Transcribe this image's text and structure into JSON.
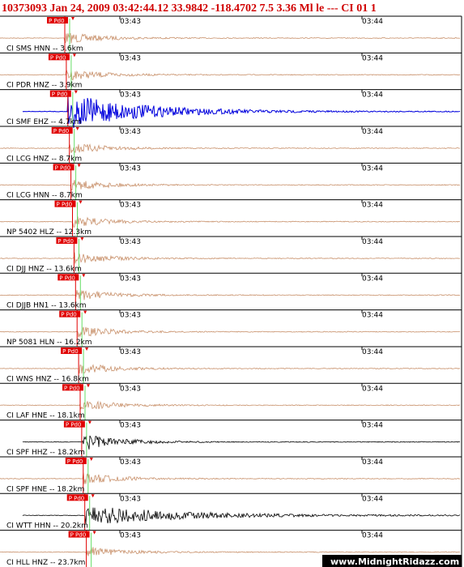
{
  "header": {
    "title": "10373093 Jan 24, 2009 03:42:44.12   33.9842 -118.4702  7.5 3.36 Ml le --- CI 01   1"
  },
  "time_labels": [
    "03:43",
    "03:44"
  ],
  "phase": "P Pd0",
  "traces": [
    {
      "label": "CI SMS HNN -- 3.6km"
    },
    {
      "label": "CI PDR HNZ -- 3.9km"
    },
    {
      "label": "CI SMF EHZ -- 4.7km"
    },
    {
      "label": "CI LCG HNZ -- 8.7km"
    },
    {
      "label": "CI LCG HNN -- 8.7km"
    },
    {
      "label": "NP 5402 HLZ -- 12.3km"
    },
    {
      "label": "CI DJJ HNZ -- 13.6km"
    },
    {
      "label": "CI DJJB HN1 -- 13.6km"
    },
    {
      "label": "NP 5081 HLN -- 16.2km"
    },
    {
      "label": "CI WNS HNZ -- 16.8km"
    },
    {
      "label": "CI LAF HNE -- 18.1km"
    },
    {
      "label": "CI SPF HHZ -- 18.2km"
    },
    {
      "label": "CI SPF HNE -- 18.2km"
    },
    {
      "label": "CI WTT HHN -- 20.2km"
    },
    {
      "label": "CI HLL HNZ -- 23.7km"
    }
  ],
  "footer": {
    "watermark": "www.MidnightRidazz.com"
  }
}
